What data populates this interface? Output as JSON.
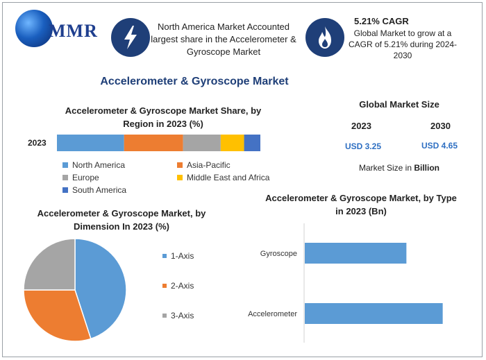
{
  "header": {
    "logo_text": "MMR",
    "highlight_text": "North America Market Accounted largest share in the Accelerometer & Gyroscope Market",
    "cagr_title": "5.21% CAGR",
    "cagr_text": "Global Market to grow at a CAGR of 5.21% during 2024-2030",
    "icons": [
      "lightning-bolt-icon",
      "flame-icon"
    ]
  },
  "main_title": "Accelerometer & Gyroscope Market",
  "global_size": {
    "title": "Global Market Size",
    "year_start": "2023",
    "year_end": "2030",
    "value_start": "USD 3.25",
    "value_end": "USD 4.65",
    "note_prefix": "Market Size in ",
    "note_unit": "Billion"
  },
  "colors": {
    "blue": "#5b9bd5",
    "orange": "#ed7d31",
    "gray": "#a5a5a5",
    "yellow": "#ffc000",
    "darkblue": "#4472c4",
    "navy": "#1f3f78"
  },
  "chart_data": [
    {
      "type": "bar",
      "orientation": "horizontal-stacked",
      "title": "Accelerometer & Gyroscope Market Share, by Region in 2023 (%)",
      "categories": [
        "2023"
      ],
      "series": [
        {
          "name": "North America",
          "values": [
            33
          ],
          "color": "#5b9bd5"
        },
        {
          "name": "Asia-Pacific",
          "values": [
            29
          ],
          "color": "#ed7d31"
        },
        {
          "name": "Europe",
          "values": [
            18.5
          ],
          "color": "#a5a5a5"
        },
        {
          "name": "Middle East and Africa",
          "values": [
            11.5
          ],
          "color": "#ffc000"
        },
        {
          "name": "South America",
          "values": [
            8
          ],
          "color": "#4472c4"
        }
      ],
      "legend": "bottom"
    },
    {
      "type": "pie",
      "title": "Accelerometer & Gyroscope Market, by Dimension In 2023 (%)",
      "labels": [
        "1-Axis",
        "2-Axis",
        "3-Axis"
      ],
      "values": [
        45,
        30,
        25
      ],
      "colors": [
        "#5b9bd5",
        "#ed7d31",
        "#a5a5a5"
      ],
      "legend": "right"
    },
    {
      "type": "bar",
      "orientation": "horizontal",
      "title": "Accelerometer & Gyroscope Market, by Type in 2023 (Bn)",
      "categories": [
        "Gyroscope",
        "Accelerometer"
      ],
      "values": [
        1.4,
        1.9
      ],
      "xlim": [
        0,
        2.2
      ],
      "color": "#5b9bd5"
    }
  ]
}
